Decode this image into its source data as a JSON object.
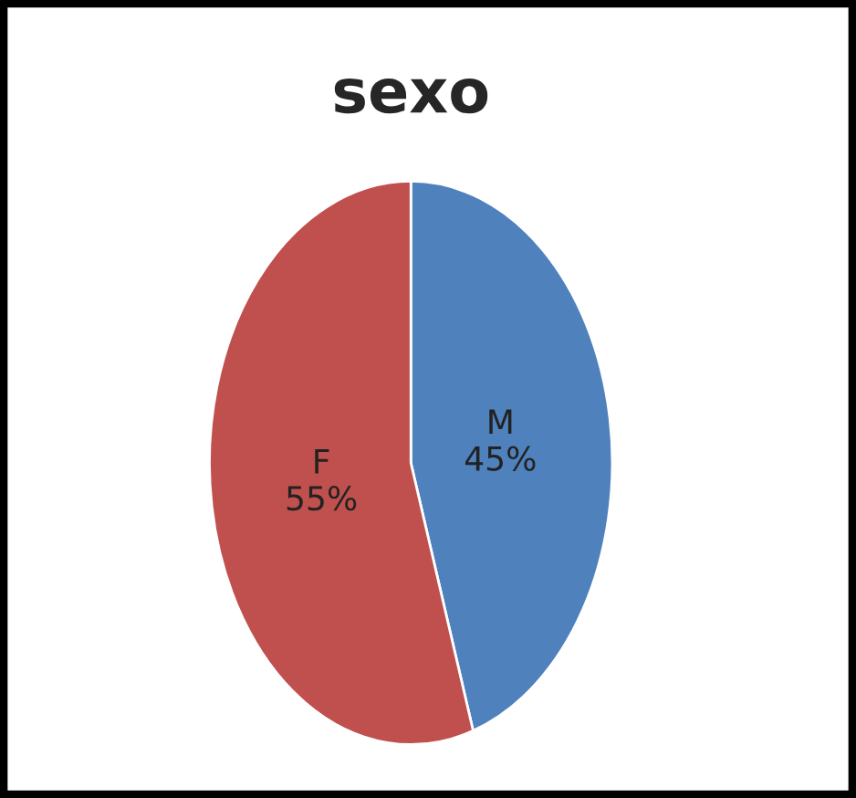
{
  "chart_data": {
    "type": "pie",
    "title": "sexo",
    "categories": [
      "M",
      "F"
    ],
    "values": [
      45,
      55
    ],
    "colors": [
      "#4f81bd",
      "#c0504d"
    ],
    "value_labels": [
      "45%",
      "55%"
    ],
    "legend": false
  }
}
